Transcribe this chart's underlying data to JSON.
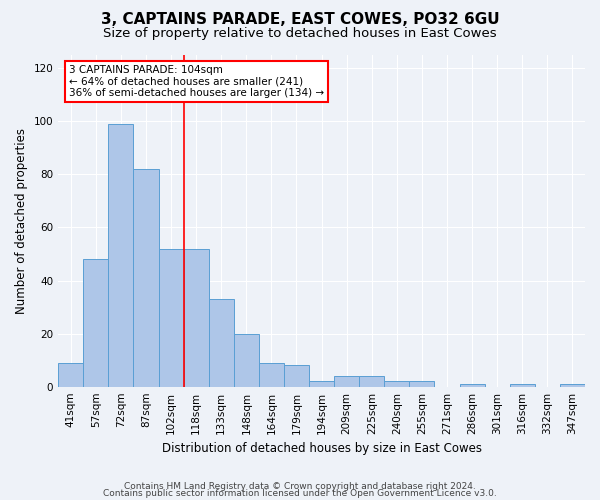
{
  "title": "3, CAPTAINS PARADE, EAST COWES, PO32 6GU",
  "subtitle": "Size of property relative to detached houses in East Cowes",
  "xlabel": "Distribution of detached houses by size in East Cowes",
  "ylabel": "Number of detached properties",
  "categories": [
    "41sqm",
    "57sqm",
    "72sqm",
    "87sqm",
    "102sqm",
    "118sqm",
    "133sqm",
    "148sqm",
    "164sqm",
    "179sqm",
    "194sqm",
    "209sqm",
    "225sqm",
    "240sqm",
    "255sqm",
    "271sqm",
    "286sqm",
    "301sqm",
    "316sqm",
    "332sqm",
    "347sqm"
  ],
  "values": [
    9,
    48,
    99,
    82,
    52,
    52,
    33,
    20,
    9,
    8,
    2,
    4,
    4,
    2,
    2,
    0,
    1,
    0,
    1,
    0,
    1
  ],
  "bar_color": "#aec6e8",
  "bar_edge_color": "#5a9fd4",
  "vline_index": 4.5,
  "marker_label": "3 CAPTAINS PARADE: 104sqm",
  "annotation_line1": "← 64% of detached houses are smaller (241)",
  "annotation_line2": "36% of semi-detached houses are larger (134) →",
  "annotation_box_color": "white",
  "annotation_box_edge_color": "red",
  "vline_color": "red",
  "footer1": "Contains HM Land Registry data © Crown copyright and database right 2024.",
  "footer2": "Contains public sector information licensed under the Open Government Licence v3.0.",
  "ylim": [
    0,
    125
  ],
  "yticks": [
    0,
    20,
    40,
    60,
    80,
    100,
    120
  ],
  "bg_color": "#eef2f8",
  "grid_color": "white",
  "title_fontsize": 11,
  "subtitle_fontsize": 9.5,
  "axis_label_fontsize": 8.5,
  "tick_fontsize": 7.5,
  "footer_fontsize": 6.5,
  "annotation_fontsize": 7.5
}
